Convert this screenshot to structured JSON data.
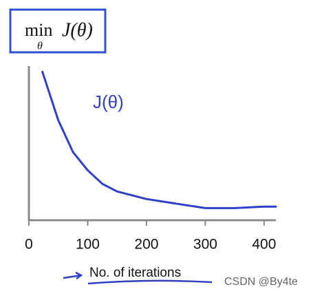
{
  "chart_data": {
    "type": "line",
    "ylabel": {
      "operator": "min",
      "subscript": "θ",
      "expr": "J(θ)"
    },
    "annotation": "J(θ)",
    "xlabel": "No. of iterations",
    "watermark": "CSDN @By4te",
    "x": [
      23,
      50,
      75,
      100,
      125,
      150,
      200,
      250,
      300,
      350,
      400,
      420
    ],
    "series": [
      {
        "color": "#2f3fc8",
        "values": [
          0.98,
          0.66,
          0.45,
          0.33,
          0.24,
          0.19,
          0.14,
          0.11,
          0.08,
          0.08,
          0.09,
          0.09
        ]
      }
    ],
    "xlim": [
      0,
      420
    ],
    "ylim": [
      0,
      1
    ],
    "xticks": [
      0,
      100,
      200,
      300,
      400
    ]
  }
}
